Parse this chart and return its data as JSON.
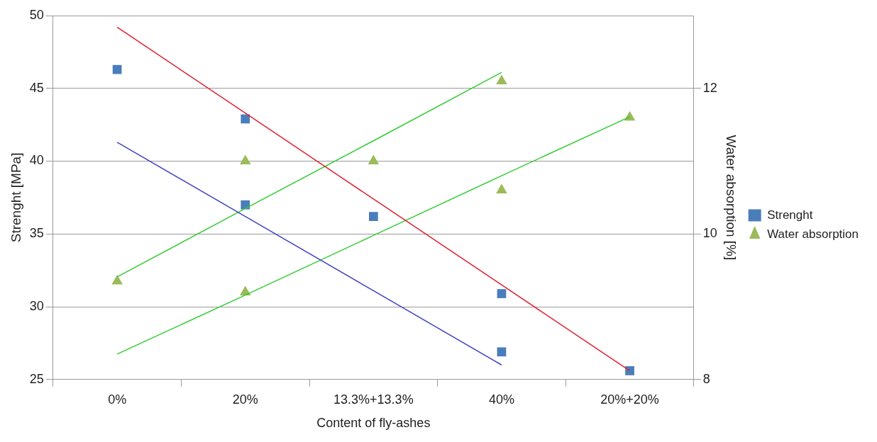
{
  "chart_data": {
    "type": "scatter",
    "xlabel": "Content of fly-ashes",
    "ylabel": "Strenght [MPa]",
    "y2label": "Water absorption [%]",
    "categories": [
      "0%",
      "20%",
      "13.3%+13.3%",
      "40%",
      "20%+20%"
    ],
    "ylim": [
      25,
      50
    ],
    "yticks": [
      25,
      30,
      35,
      40,
      45,
      50
    ],
    "y2lim": [
      8,
      13
    ],
    "y2ticks": [
      8,
      10,
      12
    ],
    "grid": "y",
    "legend": "right",
    "series": [
      {
        "name": "Strenght",
        "type": "scatter",
        "marker": "square",
        "color": "#4a7ebb",
        "x": [
          "0%",
          "20%",
          "20%",
          "13.3%+13.3%",
          "40%",
          "40%",
          "20%+20%"
        ],
        "values": [
          46.3,
          42.9,
          37.0,
          36.2,
          30.9,
          26.9,
          25.6
        ]
      },
      {
        "name": "Water absorption",
        "type": "scatter",
        "marker": "triangle",
        "color": "#9bbb59",
        "axis": "y2",
        "x": [
          "0%",
          "20%",
          "20%",
          "13.3%+13.3%",
          "40%",
          "40%",
          "20%+20%"
        ],
        "values": [
          9.35,
          11.0,
          9.2,
          11.0,
          12.1,
          10.6,
          11.6
        ]
      },
      {
        "type": "line",
        "marker": "none",
        "color": "#e02030",
        "values": [
          49.2,
          43.3,
          37.4,
          31.5,
          25.6
        ]
      },
      {
        "type": "line",
        "marker": "none",
        "color": "#4040c0",
        "values": [
          41.3,
          36.2,
          31.1,
          26.0,
          null
        ]
      },
      {
        "type": "line",
        "marker": "none",
        "color": "#33cc33",
        "axis": "y2",
        "values": [
          9.41,
          10.35,
          11.28,
          12.22,
          null
        ]
      },
      {
        "type": "line",
        "marker": "none",
        "color": "#33cc33",
        "axis": "y2",
        "values": [
          8.35,
          9.16,
          9.98,
          10.8,
          11.61
        ]
      }
    ]
  }
}
